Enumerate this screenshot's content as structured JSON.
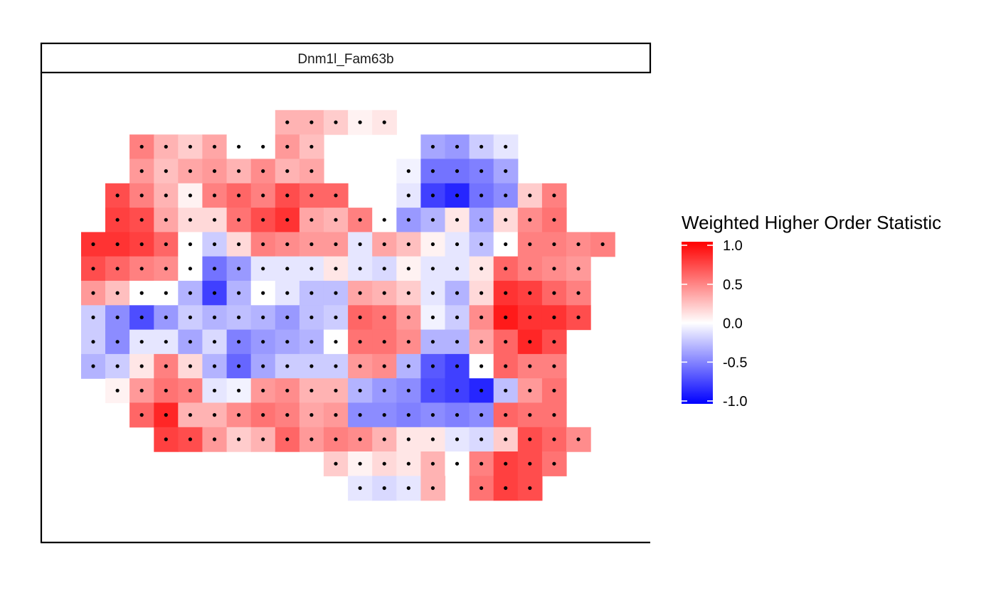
{
  "chart_data": {
    "type": "heatmap",
    "panel_label": "Dnm1l_Fam63b",
    "legend": {
      "title": "Weighted Higher Order Statistic",
      "ticks": [
        1.0,
        0.5,
        0.0,
        -0.5,
        -1.0
      ],
      "tick_labels": [
        "1.0",
        "0.5",
        "0.0",
        "-0.5",
        "-1.0"
      ],
      "range": [
        -1.0,
        1.0
      ],
      "placement": "right"
    },
    "colors": {
      "low": "#0000ff",
      "mid": "#ffffff",
      "high": "#ff0000"
    },
    "grid": false,
    "rows": [
      {
        "row": 0,
        "x0": 8,
        "values": [
          0.3,
          0.3,
          0.2,
          0.05,
          0.1
        ]
      },
      {
        "row": 1,
        "x0": 2,
        "values": [
          0.5,
          0.3,
          0.2,
          0.35,
          0.0,
          0.0,
          0.4,
          0.25,
          null,
          null,
          null,
          null,
          -0.35,
          -0.4,
          -0.2,
          -0.1
        ]
      },
      {
        "row": 2,
        "x0": 2,
        "values": [
          0.4,
          0.25,
          0.35,
          0.4,
          0.3,
          0.45,
          0.3,
          0.35,
          null,
          null,
          null,
          -0.05,
          -0.55,
          -0.55,
          -0.5,
          -0.35,
          null
        ]
      },
      {
        "row": 3,
        "x0": 1,
        "values": [
          0.7,
          0.5,
          0.3,
          0.05,
          0.5,
          0.6,
          0.5,
          0.7,
          0.6,
          0.6,
          null,
          null,
          -0.1,
          -0.75,
          -0.85,
          -0.55,
          -0.45,
          0.2,
          0.5
        ]
      },
      {
        "row": 4,
        "x0": 1,
        "values": [
          0.75,
          0.7,
          0.35,
          0.15,
          0.15,
          0.55,
          0.7,
          0.8,
          0.35,
          0.3,
          0.5,
          0.0,
          -0.4,
          -0.3,
          0.1,
          -0.35,
          0.15,
          0.45,
          0.55
        ]
      },
      {
        "row": 5,
        "x0": 0,
        "values": [
          0.8,
          0.8,
          0.75,
          0.6,
          0.0,
          -0.2,
          0.15,
          0.5,
          0.45,
          0.4,
          0.4,
          -0.1,
          0.35,
          0.25,
          0.05,
          -0.1,
          -0.25,
          0.0,
          0.5,
          0.5,
          0.45,
          0.5
        ]
      },
      {
        "row": 6,
        "x0": 0,
        "values": [
          0.7,
          0.6,
          0.5,
          0.45,
          0.0,
          -0.55,
          -0.4,
          -0.1,
          -0.1,
          -0.1,
          0.1,
          -0.1,
          -0.15,
          0.05,
          -0.1,
          -0.1,
          0.1,
          0.6,
          0.5,
          0.45,
          0.4
        ]
      },
      {
        "row": 7,
        "x0": 0,
        "values": [
          0.4,
          0.25,
          0.0,
          0.0,
          -0.3,
          -0.75,
          -0.3,
          0.0,
          -0.1,
          -0.25,
          -0.25,
          0.35,
          0.3,
          0.2,
          -0.1,
          -0.3,
          0.15,
          0.8,
          0.75,
          0.6,
          0.5
        ]
      },
      {
        "row": 8,
        "x0": 0,
        "values": [
          -0.2,
          -0.45,
          -0.7,
          -0.4,
          -0.2,
          -0.3,
          -0.25,
          -0.3,
          -0.4,
          -0.25,
          -0.2,
          0.6,
          0.55,
          0.4,
          -0.05,
          -0.2,
          0.45,
          0.9,
          0.8,
          0.8,
          0.7
        ]
      },
      {
        "row": 9,
        "x0": 0,
        "values": [
          -0.2,
          -0.45,
          -0.1,
          -0.1,
          -0.35,
          -0.15,
          -0.5,
          -0.4,
          -0.35,
          -0.3,
          0.0,
          0.55,
          0.55,
          0.45,
          -0.3,
          -0.3,
          0.35,
          0.6,
          0.85,
          0.7
        ]
      },
      {
        "row": 10,
        "x0": 0,
        "values": [
          -0.3,
          -0.2,
          0.1,
          0.5,
          0.15,
          -0.3,
          -0.6,
          -0.35,
          -0.2,
          -0.2,
          -0.2,
          0.4,
          0.45,
          -0.3,
          -0.65,
          -0.75,
          0.0,
          0.6,
          0.5,
          0.5
        ]
      },
      {
        "row": 11,
        "x0": 1,
        "values": [
          0.05,
          0.4,
          0.55,
          0.5,
          -0.1,
          -0.05,
          0.4,
          0.45,
          0.3,
          0.3,
          -0.3,
          -0.4,
          -0.45,
          -0.7,
          -0.75,
          -0.85,
          -0.25,
          0.4,
          0.55
        ]
      },
      {
        "row": 12,
        "x0": 2,
        "values": [
          0.6,
          0.85,
          0.3,
          0.3,
          0.45,
          0.55,
          0.5,
          0.35,
          0.4,
          -0.45,
          -0.45,
          -0.5,
          -0.45,
          -0.5,
          -0.45,
          0.6,
          0.55,
          0.55
        ]
      },
      {
        "row": 13,
        "x0": 3,
        "values": [
          0.75,
          0.7,
          0.4,
          0.2,
          0.3,
          0.6,
          0.4,
          0.5,
          0.45,
          0.3,
          0.1,
          0.1,
          -0.1,
          -0.15,
          0.2,
          0.7,
          0.6,
          0.45
        ]
      },
      {
        "row": 14,
        "x0": 10,
        "values": [
          0.2,
          0.05,
          0.15,
          0.1,
          0.3,
          0.0,
          0.5,
          0.75,
          0.7,
          0.55
        ]
      },
      {
        "row": 15,
        "x0": 11,
        "values": [
          -0.1,
          -0.15,
          -0.1,
          0.3,
          null,
          0.55,
          0.75,
          0.7
        ]
      }
    ]
  }
}
